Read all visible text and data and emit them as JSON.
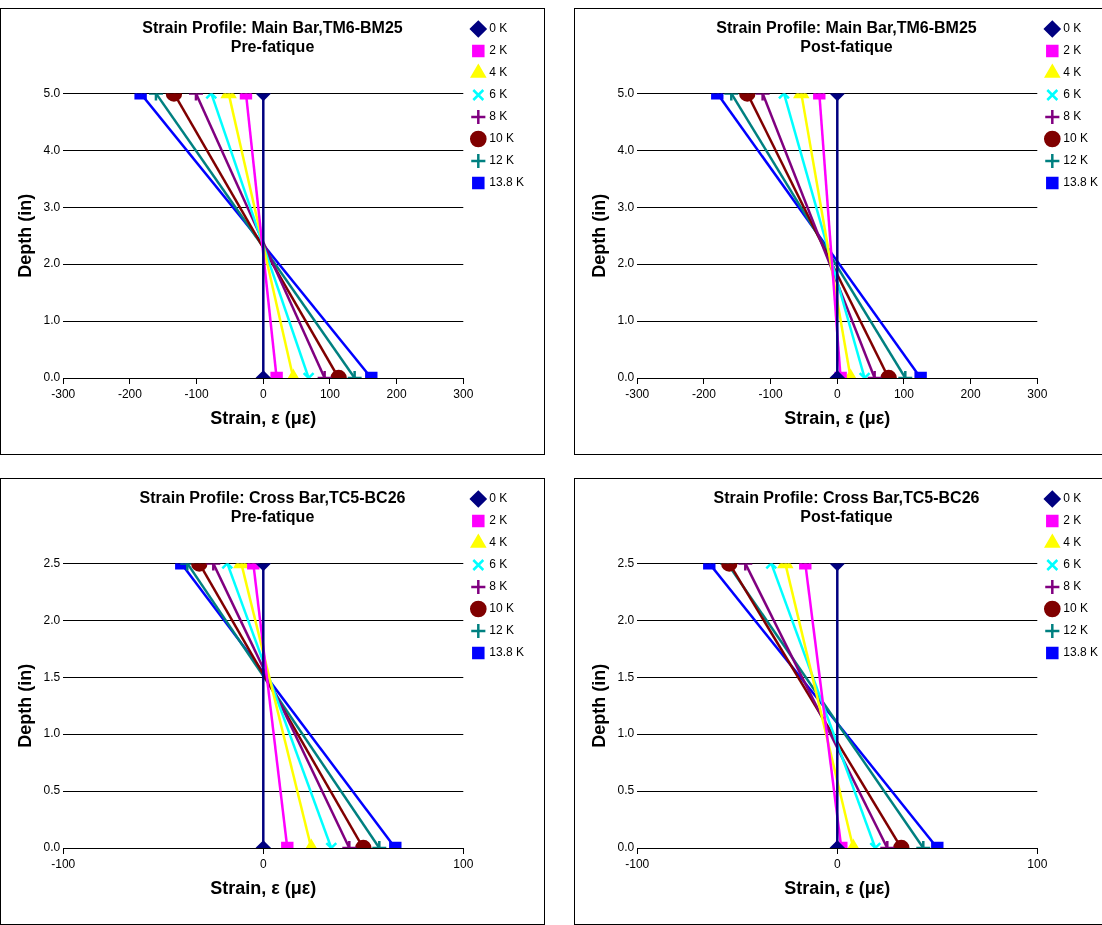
{
  "chart_data": [
    {
      "type": "line",
      "title": "Strain Profile: Main Bar,TM6-BM25",
      "subtitle": "Pre-fatique",
      "xlabel": "Strain, ε (με)",
      "ylabel": "Depth (in)",
      "xlim": [
        -300,
        300
      ],
      "xticks": [
        -300,
        -200,
        -100,
        0,
        100,
        200,
        300
      ],
      "ylim": [
        0,
        5
      ],
      "yticks": [
        {
          "value": 0,
          "label": "0.0"
        },
        {
          "value": 1,
          "label": "1.0"
        },
        {
          "value": 2,
          "label": "2.0"
        },
        {
          "value": 3,
          "label": "3.0"
        },
        {
          "value": 4,
          "label": "4.0"
        },
        {
          "value": 5,
          "label": "5.0"
        }
      ],
      "grid": "y",
      "legend": "right",
      "series": [
        {
          "name": "0 K",
          "color": "#000080",
          "marker": "diamond",
          "x": [
            0,
            0
          ],
          "values": [
            0,
            5
          ]
        },
        {
          "name": "2 K",
          "color": "#ff00ff",
          "marker": "square",
          "x": [
            20,
            -26
          ],
          "values": [
            0,
            5
          ]
        },
        {
          "name": "4 K",
          "color": "#ffff00",
          "marker": "triangle",
          "x": [
            45,
            -52
          ],
          "values": [
            0,
            5
          ]
        },
        {
          "name": "6 K",
          "color": "#00ffff",
          "marker": "x",
          "x": [
            68,
            -78
          ],
          "values": [
            0,
            5
          ]
        },
        {
          "name": "8 K",
          "color": "#800080",
          "marker": "cross",
          "x": [
            92,
            -101
          ],
          "values": [
            0,
            5
          ]
        },
        {
          "name": "10 K",
          "color": "#800000",
          "marker": "circle",
          "x": [
            113,
            -134
          ],
          "values": [
            0,
            5
          ]
        },
        {
          "name": "12 K",
          "color": "#008080",
          "marker": "cross",
          "x": [
            137,
            -161
          ],
          "values": [
            0,
            5
          ]
        },
        {
          "name": "13.8 K",
          "color": "#0000ff",
          "marker": "square",
          "x": [
            162,
            -184
          ],
          "values": [
            0,
            5
          ]
        }
      ]
    },
    {
      "type": "line",
      "title": "Strain Profile: Main Bar,TM6-BM25",
      "subtitle": "Post-fatique",
      "xlabel": "Strain, ε (με)",
      "ylabel": "Depth (in)",
      "xlim": [
        -300,
        300
      ],
      "xticks": [
        -300,
        -200,
        -100,
        0,
        100,
        200,
        300
      ],
      "ylim": [
        0,
        5
      ],
      "yticks": [
        {
          "value": 0,
          "label": "0.0"
        },
        {
          "value": 1,
          "label": "1.0"
        },
        {
          "value": 2,
          "label": "2.0"
        },
        {
          "value": 3,
          "label": "3.0"
        },
        {
          "value": 4,
          "label": "4.0"
        },
        {
          "value": 5,
          "label": "5.0"
        }
      ],
      "grid": "y",
      "legend": "right",
      "series": [
        {
          "name": "0 K",
          "color": "#000080",
          "marker": "diamond",
          "x": [
            0,
            0
          ],
          "values": [
            0,
            5
          ]
        },
        {
          "name": "2 K",
          "color": "#ff00ff",
          "marker": "square",
          "x": [
            5,
            -27
          ],
          "values": [
            0,
            5
          ]
        },
        {
          "name": "4 K",
          "color": "#ffff00",
          "marker": "triangle",
          "x": [
            20,
            -54
          ],
          "values": [
            0,
            5
          ]
        },
        {
          "name": "6 K",
          "color": "#00ffff",
          "marker": "x",
          "x": [
            41,
            -80
          ],
          "values": [
            0,
            5
          ]
        },
        {
          "name": "8 K",
          "color": "#800080",
          "marker": "cross",
          "x": [
            56,
            -112
          ],
          "values": [
            0,
            5
          ]
        },
        {
          "name": "10 K",
          "color": "#800000",
          "marker": "circle",
          "x": [
            77,
            -135
          ],
          "values": [
            0,
            5
          ]
        },
        {
          "name": "12 K",
          "color": "#008080",
          "marker": "cross",
          "x": [
            102,
            -159
          ],
          "values": [
            0,
            5
          ]
        },
        {
          "name": "13.8 K",
          "color": "#0000ff",
          "marker": "square",
          "x": [
            125,
            -180
          ],
          "values": [
            0,
            5
          ]
        }
      ]
    },
    {
      "type": "line",
      "title": "Strain Profile: Cross Bar,TC5-BC26",
      "subtitle": "Pre-fatique",
      "xlabel": "Strain, ε (με)",
      "ylabel": "Depth (in)",
      "xlim": [
        -100,
        100
      ],
      "xticks": [
        -100,
        0,
        100
      ],
      "ylim": [
        0,
        2.5
      ],
      "yticks": [
        {
          "value": 0,
          "label": "0.0"
        },
        {
          "value": 0.5,
          "label": "0.5"
        },
        {
          "value": 1,
          "label": "1.0"
        },
        {
          "value": 1.5,
          "label": "1.5"
        },
        {
          "value": 2,
          "label": "2.0"
        },
        {
          "value": 2.5,
          "label": "2.5"
        }
      ],
      "grid": "y",
      "legend": "right",
      "series": [
        {
          "name": "0 K",
          "color": "#000080",
          "marker": "diamond",
          "x": [
            0,
            0
          ],
          "values": [
            0,
            2.5
          ]
        },
        {
          "name": "2 K",
          "color": "#ff00ff",
          "marker": "square",
          "x": [
            12,
            -5
          ],
          "values": [
            0,
            2.5
          ]
        },
        {
          "name": "4 K",
          "color": "#ffff00",
          "marker": "triangle",
          "x": [
            24,
            -11
          ],
          "values": [
            0,
            2.5
          ]
        },
        {
          "name": "6 K",
          "color": "#00ffff",
          "marker": "x",
          "x": [
            34,
            -18
          ],
          "values": [
            0,
            2.5
          ]
        },
        {
          "name": "8 K",
          "color": "#800080",
          "marker": "cross",
          "x": [
            43,
            -25
          ],
          "values": [
            0,
            2.5
          ]
        },
        {
          "name": "10 K",
          "color": "#800000",
          "marker": "circle",
          "x": [
            50,
            -32
          ],
          "values": [
            0,
            2.5
          ]
        },
        {
          "name": "12 K",
          "color": "#008080",
          "marker": "cross",
          "x": [
            58,
            -38
          ],
          "values": [
            0,
            2.5
          ]
        },
        {
          "name": "13.8 K",
          "color": "#0000ff",
          "marker": "square",
          "x": [
            66,
            -41
          ],
          "values": [
            0,
            2.5
          ]
        }
      ]
    },
    {
      "type": "line",
      "title": "Strain Profile: Cross Bar,TC5-BC26",
      "subtitle": "Post-fatique",
      "xlabel": "Strain, ε (με)",
      "ylabel": "Depth (in)",
      "xlim": [
        -100,
        100
      ],
      "xticks": [
        -100,
        0,
        100
      ],
      "ylim": [
        0,
        2.5
      ],
      "yticks": [
        {
          "value": 0,
          "label": "0.0"
        },
        {
          "value": 0.5,
          "label": "0.5"
        },
        {
          "value": 1,
          "label": "1.0"
        },
        {
          "value": 1.5,
          "label": "1.5"
        },
        {
          "value": 2,
          "label": "2.0"
        },
        {
          "value": 2.5,
          "label": "2.5"
        }
      ],
      "grid": "y",
      "legend": "right",
      "series": [
        {
          "name": "0 K",
          "color": "#000080",
          "marker": "diamond",
          "x": [
            0,
            0
          ],
          "values": [
            0,
            2.5
          ]
        },
        {
          "name": "2 K",
          "color": "#ff00ff",
          "marker": "square",
          "x": [
            2,
            -16
          ],
          "values": [
            0,
            2.5
          ]
        },
        {
          "name": "4 K",
          "color": "#ffff00",
          "marker": "triangle",
          "x": [
            8,
            -26
          ],
          "values": [
            0,
            2.5
          ]
        },
        {
          "name": "6 K",
          "color": "#00ffff",
          "marker": "x",
          "x": [
            19,
            -33
          ],
          "values": [
            0,
            2.5
          ]
        },
        {
          "name": "8 K",
          "color": "#800080",
          "marker": "cross",
          "x": [
            25,
            -46
          ],
          "values": [
            0,
            2.5
          ]
        },
        {
          "name": "10 K",
          "color": "#800000",
          "marker": "circle",
          "x": [
            32,
            -54
          ],
          "values": [
            0,
            2.5
          ]
        },
        {
          "name": "12 K",
          "color": "#008080",
          "marker": "cross",
          "x": [
            43,
            -55
          ],
          "values": [
            0,
            2.5
          ]
        },
        {
          "name": "13.8 K",
          "color": "#0000ff",
          "marker": "square",
          "x": [
            50,
            -64
          ],
          "values": [
            0,
            2.5
          ]
        }
      ]
    }
  ]
}
